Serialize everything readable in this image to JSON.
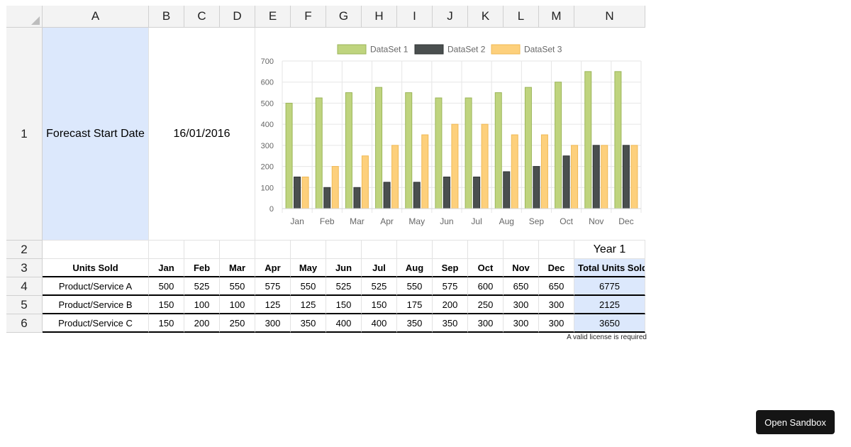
{
  "columns": [
    "A",
    "B",
    "C",
    "D",
    "E",
    "F",
    "G",
    "H",
    "I",
    "J",
    "K",
    "L",
    "M",
    "N"
  ],
  "rows": [
    "1",
    "2",
    "3",
    "4",
    "5",
    "6"
  ],
  "row1": {
    "label": "Forecast Start Date",
    "date": "16/01/2016"
  },
  "row2": {
    "year": "Year 1"
  },
  "table": {
    "header": [
      "Units Sold",
      "Jan",
      "Feb",
      "Mar",
      "Apr",
      "May",
      "Jun",
      "Jul",
      "Aug",
      "Sep",
      "Oct",
      "Nov",
      "Dec",
      "Total Units Sold"
    ],
    "rows": [
      [
        "Product/Service A",
        "500",
        "525",
        "550",
        "575",
        "550",
        "525",
        "525",
        "550",
        "575",
        "600",
        "650",
        "650",
        "6775"
      ],
      [
        "Product/Service B",
        "150",
        "100",
        "100",
        "125",
        "125",
        "150",
        "150",
        "175",
        "200",
        "250",
        "300",
        "300",
        "2125"
      ],
      [
        "Product/Service C",
        "150",
        "200",
        "250",
        "300",
        "350",
        "400",
        "400",
        "350",
        "350",
        "300",
        "300",
        "300",
        "3650"
      ]
    ]
  },
  "license_text": "A valid license is required",
  "sandbox_button": "Open Sandbox",
  "chart_data": {
    "type": "bar",
    "categories": [
      "Jan",
      "Feb",
      "Mar",
      "Apr",
      "May",
      "Jun",
      "Jul",
      "Aug",
      "Sep",
      "Oct",
      "Nov",
      "Dec"
    ],
    "series": [
      {
        "name": "DataSet 1",
        "color": "#bfd47e",
        "stroke": "#9bb55a",
        "values": [
          500,
          525,
          550,
          575,
          550,
          525,
          525,
          550,
          575,
          600,
          650,
          650
        ]
      },
      {
        "name": "DataSet 2",
        "color": "#4a4f4f",
        "stroke": "#2f3333",
        "values": [
          150,
          100,
          100,
          125,
          125,
          150,
          150,
          175,
          200,
          250,
          300,
          300
        ]
      },
      {
        "name": "DataSet 3",
        "color": "#fdd07c",
        "stroke": "#f0b955",
        "values": [
          150,
          200,
          250,
          300,
          350,
          400,
          400,
          350,
          350,
          300,
          300,
          300
        ]
      }
    ],
    "yticks": [
      "0",
      "100",
      "200",
      "300",
      "400",
      "500",
      "600",
      "700"
    ],
    "ylim": [
      0,
      700
    ],
    "legend_position": "top",
    "grid": true
  }
}
